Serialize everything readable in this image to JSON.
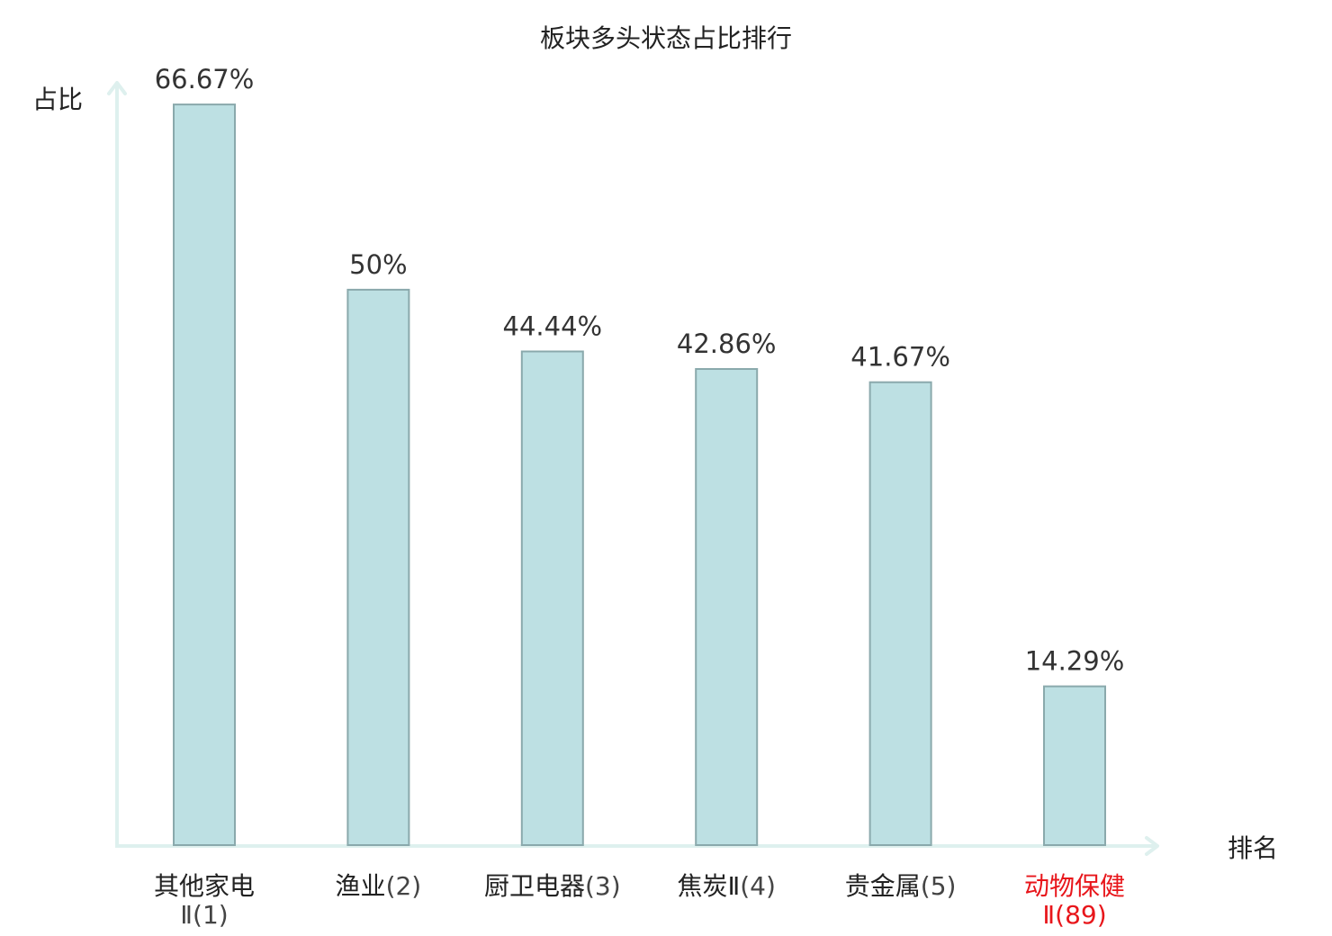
{
  "chart_data": {
    "type": "bar",
    "title": "板块多头状态占比排行",
    "ylabel": "占比",
    "xlabel": "排名",
    "ylim": [
      0,
      70
    ],
    "grid": false,
    "legend": "none",
    "categories": [
      {
        "name": "其他家电",
        "rank_text": "Ⅱ(1)",
        "inline": false
      },
      {
        "name": "渔业",
        "rank_text": "(2)",
        "inline": true
      },
      {
        "name": "厨卫电器",
        "rank_text": "(3)",
        "inline": true
      },
      {
        "name": "焦炭Ⅱ",
        "rank_text": "(4)",
        "inline": true
      },
      {
        "name": "贵金属",
        "rank_text": "(5)",
        "inline": true
      },
      {
        "name": "动物保健",
        "rank_text": "Ⅱ(89)",
        "inline": false,
        "highlight": true
      }
    ],
    "values": [
      66.67,
      50,
      44.44,
      42.86,
      41.67,
      14.29
    ],
    "value_labels": [
      "66.67%",
      "50%",
      "44.44%",
      "42.86%",
      "41.67%",
      "14.29%"
    ],
    "colors": {
      "bar_fill": "#bde0e3",
      "bar_stroke": "#8aa9ac",
      "axis": "#def0ee",
      "highlight": "#e8161b"
    }
  }
}
